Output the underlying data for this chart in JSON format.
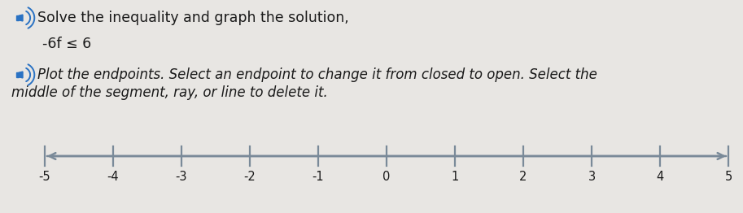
{
  "background_color": "#e8e6e3",
  "title_line": "Solve the inequality and graph the solution,",
  "inequality": "-6f ≤ 6",
  "instruction_line1": "Plot the endpoints. Select an endpoint to change it from closed to open. Select the",
  "instruction_line2": "middle of the segment, ray, or line to delete it.",
  "number_line_min": -5,
  "number_line_max": 5,
  "tick_labels": [
    -5,
    -4,
    -3,
    -2,
    -1,
    0,
    1,
    2,
    3,
    4,
    5
  ],
  "title_fontsize": 12.5,
  "inequality_fontsize": 12.5,
  "instruction_fontsize": 12,
  "tick_fontsize": 10.5,
  "line_color": "#7a8a99",
  "text_color": "#1a1a1a",
  "speaker_color": "#2a72c3"
}
